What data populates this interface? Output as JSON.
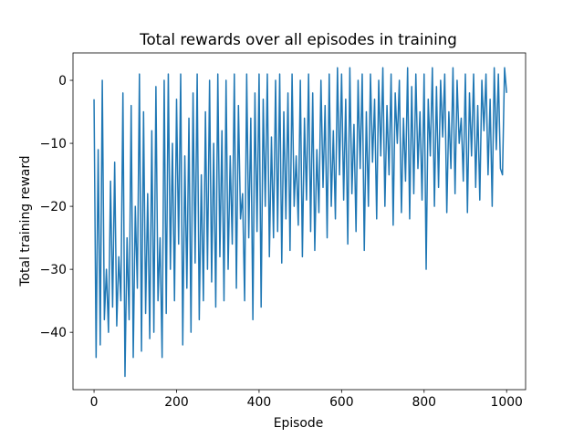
{
  "chart_data": {
    "type": "line",
    "title": "Total rewards over all episodes in training",
    "x_label": "Episode",
    "y_label": "Total training reward",
    "color": "#1f77b4",
    "xlim": [
      -51,
      1046
    ],
    "ylim": [
      -49.1,
      4.35
    ],
    "xticks": [
      0,
      200,
      400,
      600,
      800,
      1000
    ],
    "yticks": [
      {
        "value": -40,
        "label": "−40"
      },
      {
        "value": -30,
        "label": "−30"
      },
      {
        "value": -20,
        "label": "−20"
      },
      {
        "value": -10,
        "label": "−10"
      },
      0
    ],
    "x": [
      0,
      5,
      10,
      15,
      20,
      25,
      30,
      35,
      40,
      45,
      50,
      55,
      60,
      65,
      70,
      75,
      80,
      85,
      90,
      95,
      100,
      105,
      110,
      115,
      120,
      125,
      130,
      135,
      140,
      145,
      150,
      155,
      160,
      165,
      170,
      175,
      180,
      185,
      190,
      195,
      200,
      205,
      210,
      215,
      220,
      225,
      230,
      235,
      240,
      245,
      250,
      255,
      260,
      265,
      270,
      275,
      280,
      285,
      290,
      295,
      300,
      305,
      310,
      315,
      320,
      325,
      330,
      335,
      340,
      345,
      350,
      355,
      360,
      365,
      370,
      375,
      380,
      385,
      390,
      395,
      400,
      405,
      410,
      415,
      420,
      425,
      430,
      435,
      440,
      445,
      450,
      455,
      460,
      465,
      470,
      475,
      480,
      485,
      490,
      495,
      500,
      505,
      510,
      515,
      520,
      525,
      530,
      535,
      540,
      545,
      550,
      555,
      560,
      565,
      570,
      575,
      580,
      585,
      590,
      595,
      600,
      605,
      610,
      615,
      620,
      625,
      630,
      635,
      640,
      645,
      650,
      655,
      660,
      665,
      670,
      675,
      680,
      685,
      690,
      695,
      700,
      705,
      710,
      715,
      720,
      725,
      730,
      735,
      740,
      745,
      750,
      755,
      760,
      765,
      770,
      775,
      780,
      785,
      790,
      795,
      800,
      805,
      810,
      815,
      820,
      825,
      830,
      835,
      840,
      845,
      850,
      855,
      860,
      865,
      870,
      875,
      880,
      885,
      890,
      895,
      900,
      905,
      910,
      915,
      920,
      925,
      930,
      935,
      940,
      945,
      950,
      955,
      960,
      965,
      970,
      975,
      980,
      985,
      990,
      995,
      1000
    ],
    "values": [
      -3,
      -44,
      -11,
      -42,
      0,
      -38,
      -30,
      -40,
      -16,
      -36,
      -13,
      -39,
      -28,
      -35,
      -2,
      -47,
      -25,
      -38,
      -4,
      -44,
      -20,
      -33,
      1,
      -43,
      -5,
      -37,
      -18,
      -41,
      -8,
      -40,
      -1,
      -35,
      -25,
      -44,
      0,
      -37,
      1,
      -30,
      -10,
      -35,
      -3,
      -26,
      1,
      -42,
      -12,
      -33,
      -6,
      -40,
      -2,
      -29,
      1,
      -38,
      -15,
      -35,
      -5,
      -30,
      0,
      -32,
      -10,
      -36,
      1,
      -28,
      -8,
      -35,
      0,
      -30,
      -12,
      -26,
      1,
      -33,
      -4,
      -22,
      -18,
      -35,
      1,
      -25,
      -6,
      -38,
      -2,
      -24,
      1,
      -36,
      -3,
      -20,
      1,
      -28,
      -9,
      -25,
      0,
      -24,
      1,
      -29,
      -5,
      -22,
      -2,
      -27,
      1,
      -20,
      -12,
      -23,
      0,
      -28,
      -6,
      -19,
      1,
      -24,
      -2,
      -27,
      -11,
      -21,
      0,
      -17,
      -4,
      -25,
      1,
      -20,
      -8,
      -22,
      2,
      -15,
      1,
      -19,
      -3,
      -26,
      2,
      -18,
      -7,
      -24,
      0,
      -14,
      1,
      -27,
      -5,
      -20,
      1,
      -13,
      -3,
      -22,
      0,
      -12,
      2,
      -20,
      -4,
      -15,
      1,
      -23,
      -2,
      -10,
      0,
      -21,
      -6,
      -16,
      2,
      -22,
      -1,
      -18,
      1,
      -14,
      -5,
      -19,
      1,
      -30,
      -3,
      -12,
      2,
      -20,
      -1,
      -17,
      0,
      -9,
      1,
      -21,
      -5,
      -14,
      2,
      -18,
      0,
      -10,
      -6,
      -16,
      1,
      -21,
      -2,
      -12,
      1,
      -17,
      -4,
      -19,
      0,
      -8,
      1,
      -15,
      -3,
      -20,
      2,
      -11,
      1,
      -14,
      -15,
      2,
      -2
    ]
  }
}
